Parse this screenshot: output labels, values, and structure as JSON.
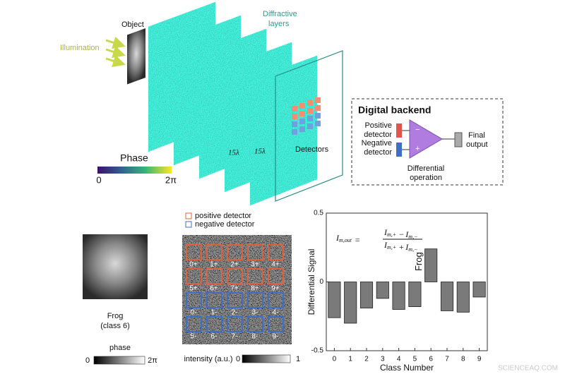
{
  "diagram": {
    "object": "Object",
    "illumination": "Illumination",
    "layers_title": [
      "Diffractive",
      "layers"
    ],
    "spacing": [
      "15λ",
      "15λ"
    ],
    "detectors": "Detectors",
    "phase_bar": {
      "title": "Phase",
      "min": "0",
      "max": "2π"
    },
    "backend": {
      "title": "Digital backend",
      "positive": [
        "Positive",
        "detector"
      ],
      "negative": [
        "Negative",
        "detector"
      ],
      "minus": "−",
      "plus": "+",
      "operation": [
        "Differential",
        "operation"
      ],
      "output": [
        "Final",
        "output"
      ]
    }
  },
  "input_panel": {
    "caption": [
      "Frog",
      "(class 6)"
    ],
    "bar_title": "phase",
    "min": "0",
    "max": "2π"
  },
  "detector_panel": {
    "legend": [
      "positive detector",
      "negative detector"
    ],
    "positive_labels": [
      "0+",
      "1+",
      "2+",
      "3+",
      "4+",
      "5+",
      "6+",
      "7+",
      "8+",
      "9+"
    ],
    "negative_labels": [
      "0-",
      "1-",
      "2-",
      "3-",
      "4-",
      "5-",
      "6-",
      "7-",
      "8-",
      "9-"
    ],
    "bar_title": "intensity (a.u.)",
    "min": "0",
    "max": "1"
  },
  "chart_data": {
    "type": "bar",
    "x_label": "Class Number",
    "y_label": "Differential Signal",
    "categories": [
      "0",
      "1",
      "2",
      "3",
      "4",
      "5",
      "6",
      "7",
      "8",
      "9"
    ],
    "values": [
      -0.26,
      -0.3,
      -0.19,
      -0.12,
      -0.2,
      -0.18,
      0.24,
      -0.21,
      -0.22,
      -0.11
    ],
    "color": "#7a7a7a",
    "ylim": [
      -0.5,
      0.5
    ],
    "yticks": [
      -0.5,
      0,
      0.5
    ],
    "annotation": {
      "text": "Frog",
      "category": 6
    },
    "formula": {
      "lhs": {
        "text": "I",
        "sub": "m,out"
      },
      "equals": "=",
      "numerator": [
        {
          "text": "I",
          "sub": "m,+"
        },
        "−",
        {
          "text": "I",
          "sub": "m,−"
        }
      ],
      "denominator": [
        {
          "text": "I",
          "sub": "m,+"
        },
        "+",
        {
          "text": "I",
          "sub": "m,−"
        }
      ]
    }
  },
  "watermark": "SCIENCEAQ.COM"
}
